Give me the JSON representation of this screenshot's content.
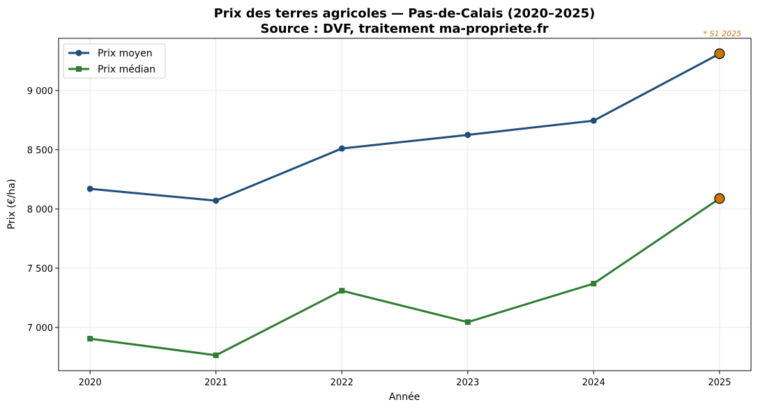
{
  "chart_data": {
    "type": "line",
    "title": "Prix des terres agricoles — Pas-de-Calais (2020–2025)",
    "subtitle": "Source : DVF, traitement ma-propriete.fr",
    "annotation": "* S1 2025",
    "xlabel": "Année",
    "ylabel": "Prix (€/ha)",
    "x": [
      2020,
      2021,
      2022,
      2023,
      2024,
      2025
    ],
    "x_tick_labels": [
      "2020",
      "2021",
      "2022",
      "2023",
      "2024",
      "2025"
    ],
    "xlim": [
      2019.75,
      2025.25
    ],
    "ylim": [
      6635,
      9440
    ],
    "y_ticks": [
      7000,
      7500,
      8000,
      8500,
      9000
    ],
    "y_tick_labels": [
      "7 000",
      "7 500",
      "8 000",
      "8 500",
      "9 000"
    ],
    "grid": true,
    "legend_placement": "top-left",
    "highlight_color": "#c87800",
    "series": [
      {
        "name": "Prix moyen",
        "marker": "circle",
        "color": "#1f4e79",
        "values": [
          8170,
          8070,
          8510,
          8625,
          8745,
          9310
        ]
      },
      {
        "name": "Prix médian",
        "marker": "square",
        "color": "#2e7d32",
        "values": [
          6905,
          6765,
          7310,
          7045,
          7370,
          8088
        ]
      }
    ]
  }
}
